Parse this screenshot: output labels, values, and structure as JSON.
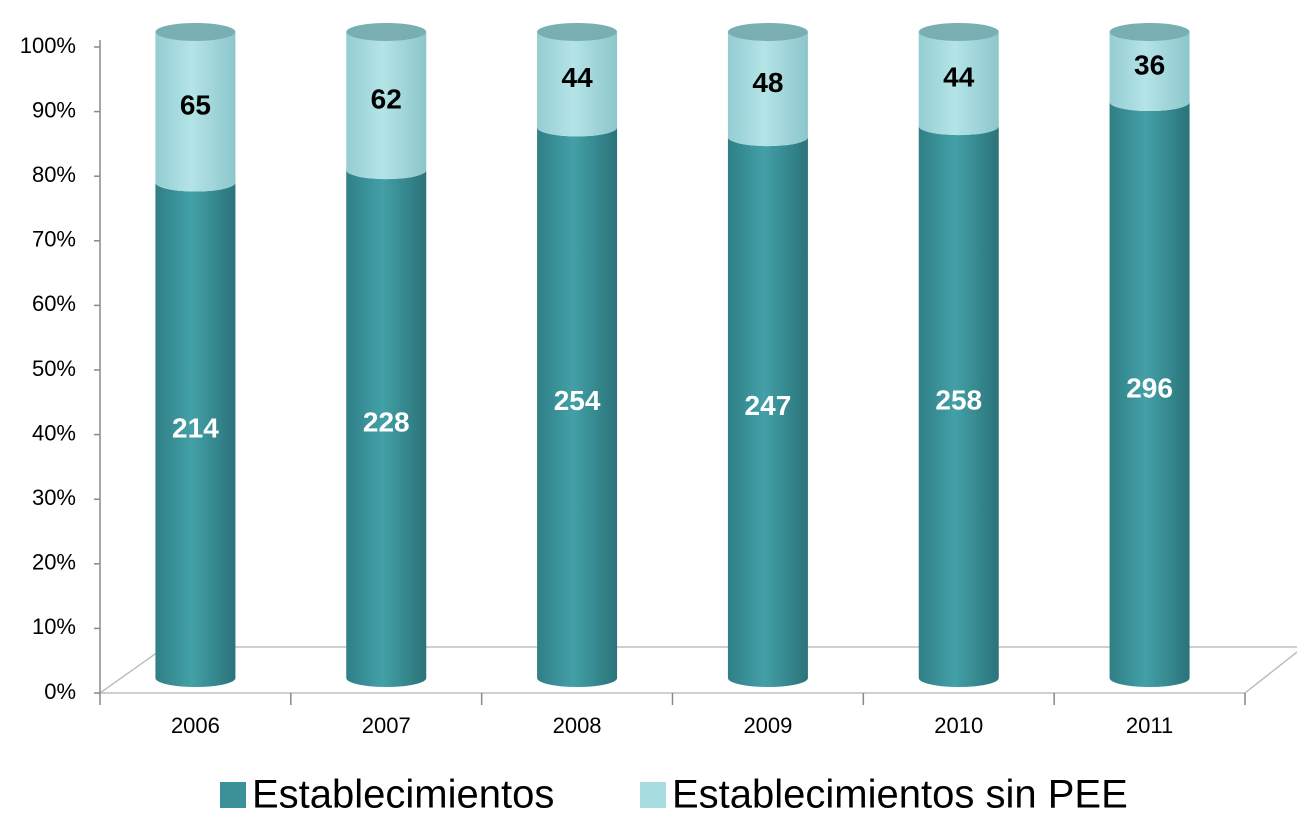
{
  "chart_data": {
    "type": "bar",
    "stack": "percent",
    "three_d": true,
    "categories": [
      "2006",
      "2007",
      "2008",
      "2009",
      "2010",
      "2011"
    ],
    "series": [
      {
        "name": "Establecimientos",
        "color": "#3c9198",
        "values": [
          214,
          228,
          254,
          247,
          258,
          296
        ]
      },
      {
        "name": "Establecimientos sin PEE",
        "color": "#a7dce0",
        "values": [
          65,
          62,
          44,
          48,
          44,
          36
        ]
      }
    ],
    "ylim": [
      0,
      100
    ],
    "yticks": [
      {
        "value": 0,
        "label": "0%"
      },
      {
        "value": 10,
        "label": "10%"
      },
      {
        "value": 20,
        "label": "20%"
      },
      {
        "value": 30,
        "label": "30%"
      },
      {
        "value": 40,
        "label": "40%"
      },
      {
        "value": 50,
        "label": "50%"
      },
      {
        "value": 60,
        "label": "60%"
      },
      {
        "value": 70,
        "label": "70%"
      },
      {
        "value": 80,
        "label": "80%"
      },
      {
        "value": 90,
        "label": "90%"
      },
      {
        "value": 100,
        "label": "100%"
      }
    ],
    "legend": "bottom"
  }
}
